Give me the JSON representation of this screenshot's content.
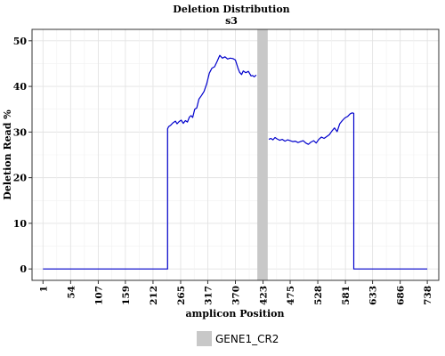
{
  "chart_data": {
    "type": "line",
    "title": "Deletion Distribution",
    "subtitle": "s3",
    "xlabel": "amplicon Position",
    "ylabel": "Deletion Read %",
    "xlim": [
      -20,
      760
    ],
    "ylim": [
      -2.5,
      52.5
    ],
    "x_ticks": [
      1,
      54,
      107,
      159,
      212,
      265,
      317,
      370,
      423,
      475,
      528,
      581,
      633,
      686,
      738
    ],
    "y_ticks": [
      0,
      10,
      20,
      30,
      40,
      50
    ],
    "grid": true,
    "highlight": {
      "name": "GENE1_CR2",
      "x_start": 412,
      "x_end": 432,
      "color": "#c8c8c8"
    },
    "legend": {
      "position": "bottom",
      "items": [
        {
          "label": "GENE1_CR2",
          "color": "#c8c8c8"
        }
      ]
    },
    "series": [
      {
        "color": "#0000cc",
        "segments": [
          {
            "x": [
              1,
              240,
              240,
              242,
              246,
              250,
              255,
              258,
              262,
              266,
              270,
              274,
              278,
              282,
              285,
              288,
              292,
              296,
              300,
              305,
              310,
              315,
              320,
              325,
              330,
              335,
              340,
              345,
              350,
              355,
              360,
              365,
              370,
              375,
              378,
              382,
              385,
              390,
              395,
              400,
              403,
              406,
              410
            ],
            "y": [
              0,
              0,
              30.7,
              31.2,
              31.5,
              32.0,
              32.4,
              31.8,
              32.3,
              32.6,
              31.9,
              32.5,
              32.2,
              33.3,
              33.6,
              33.2,
              35.0,
              35.3,
              37.2,
              38.0,
              38.9,
              40.6,
              42.9,
              44.0,
              44.3,
              45.5,
              46.8,
              46.2,
              46.5,
              46.0,
              46.2,
              46.1,
              45.8,
              44.0,
              43.1,
              42.6,
              43.4,
              43.0,
              43.3,
              42.3,
              42.4,
              42.1,
              42.5
            ]
          },
          {
            "x": [
              434,
              438,
              442,
              446,
              450,
              455,
              460,
              465,
              470,
              475,
              480,
              485,
              490,
              495,
              500,
              505,
              510,
              515,
              520,
              525,
              530,
              535,
              540,
              545,
              550,
              555,
              560,
              565,
              570,
              575,
              580,
              585,
              590,
              594,
              597,
              597,
              610,
              738
            ],
            "y": [
              28.4,
              28.6,
              28.3,
              28.8,
              28.5,
              28.2,
              28.4,
              28.0,
              28.3,
              28.1,
              27.9,
              28.0,
              27.7,
              27.9,
              28.1,
              27.6,
              27.3,
              27.8,
              28.1,
              27.6,
              28.4,
              28.9,
              28.6,
              29.0,
              29.4,
              30.2,
              30.9,
              30.1,
              31.8,
              32.5,
              33.1,
              33.4,
              34.0,
              34.2,
              34.1,
              0,
              0,
              0
            ]
          }
        ]
      }
    ]
  }
}
